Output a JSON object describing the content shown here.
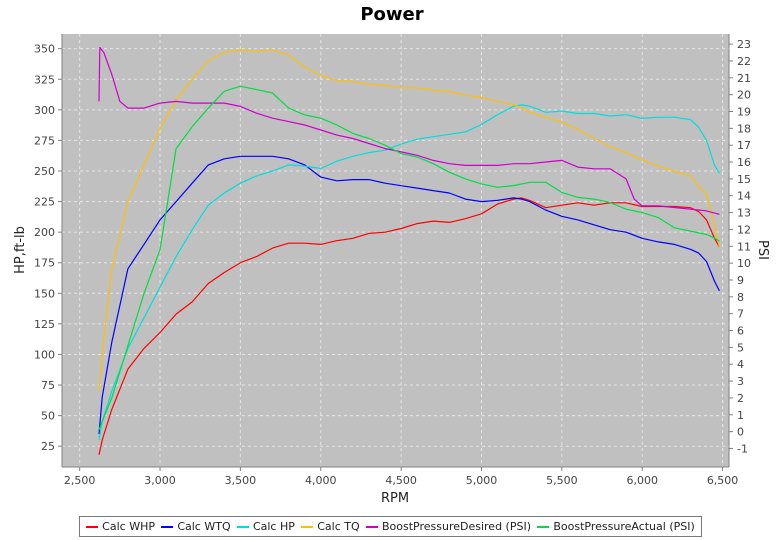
{
  "chart_data": {
    "type": "line",
    "title": "Power",
    "xlabel": "RPM",
    "ylabel": "HP,ft-lb",
    "y2label": "PSI",
    "xlim": [
      2390,
      6540
    ],
    "ylim": [
      8,
      362
    ],
    "y2lim": [
      -2.1,
      23.6
    ],
    "x_ticks": [
      2500,
      3000,
      3500,
      4000,
      4500,
      5000,
      5500,
      6000,
      6500
    ],
    "x_tick_labels": [
      "2,500",
      "3,000",
      "3,500",
      "4,000",
      "4,500",
      "5,000",
      "5,500",
      "6,000",
      "6,500"
    ],
    "y_ticks": [
      25,
      50,
      75,
      100,
      125,
      150,
      175,
      200,
      225,
      250,
      275,
      300,
      325,
      350
    ],
    "y2_ticks": [
      -1,
      0,
      1,
      2,
      3,
      4,
      5,
      6,
      7,
      8,
      9,
      10,
      11,
      12,
      13,
      14,
      15,
      16,
      17,
      18,
      19,
      20,
      21,
      22,
      23
    ],
    "grid": true,
    "legend_position": "bottom",
    "colors": {
      "plot_bg": "#c0c0c0",
      "grid": "#e6e6e6"
    },
    "series": [
      {
        "name": "Calc WHP",
        "color": "#ff0000",
        "axis": "left",
        "x": [
          2620,
          2640,
          2700,
          2800,
          2900,
          3000,
          3100,
          3200,
          3300,
          3400,
          3500,
          3600,
          3700,
          3800,
          3900,
          4000,
          4100,
          4200,
          4300,
          4400,
          4500,
          4600,
          4700,
          4800,
          4900,
          5000,
          5100,
          5200,
          5250,
          5300,
          5400,
          5500,
          5600,
          5700,
          5800,
          5900,
          6000,
          6100,
          6200,
          6300,
          6350,
          6400,
          6450,
          6480
        ],
        "values": [
          18,
          30,
          55,
          88,
          105,
          118,
          133,
          143,
          158,
          167,
          175,
          180,
          187,
          191,
          191,
          190,
          193,
          195,
          199,
          200,
          203,
          207,
          209,
          208,
          211,
          215,
          223,
          227,
          228,
          226,
          220,
          222,
          224,
          222,
          224,
          224,
          221,
          221,
          221,
          220,
          217,
          210,
          195,
          188
        ]
      },
      {
        "name": "Calc WTQ",
        "color": "#0000ff",
        "axis": "left",
        "x": [
          2620,
          2640,
          2700,
          2800,
          2900,
          3000,
          3100,
          3200,
          3300,
          3400,
          3500,
          3600,
          3700,
          3800,
          3900,
          4000,
          4100,
          4200,
          4300,
          4400,
          4500,
          4600,
          4700,
          4800,
          4900,
          5000,
          5100,
          5200,
          5250,
          5300,
          5400,
          5500,
          5600,
          5700,
          5800,
          5900,
          6000,
          6100,
          6200,
          6300,
          6350,
          6400,
          6450,
          6480
        ],
        "values": [
          35,
          65,
          110,
          170,
          190,
          210,
          225,
          240,
          255,
          260,
          262,
          262,
          262,
          260,
          255,
          245,
          242,
          243,
          243,
          240,
          238,
          236,
          234,
          232,
          227,
          225,
          226,
          228,
          227,
          225,
          218,
          213,
          210,
          206,
          202,
          200,
          195,
          192,
          190,
          186,
          183,
          176,
          160,
          152
        ]
      },
      {
        "name": "Calc HP",
        "color": "#00dddd",
        "axis": "left",
        "x": [
          2620,
          2640,
          2700,
          2800,
          2900,
          3000,
          3100,
          3200,
          3300,
          3400,
          3500,
          3600,
          3700,
          3800,
          3900,
          4000,
          4100,
          4200,
          4300,
          4400,
          4500,
          4600,
          4700,
          4800,
          4900,
          5000,
          5100,
          5200,
          5250,
          5300,
          5400,
          5500,
          5600,
          5700,
          5800,
          5900,
          6000,
          6100,
          6200,
          6300,
          6350,
          6400,
          6450,
          6480
        ],
        "values": [
          30,
          45,
          70,
          105,
          130,
          155,
          180,
          202,
          222,
          232,
          240,
          246,
          250,
          255,
          254,
          252,
          258,
          262,
          265,
          267,
          272,
          276,
          278,
          280,
          282,
          288,
          296,
          303,
          304,
          303,
          298,
          299,
          297,
          297,
          295,
          296,
          293,
          294,
          294,
          292,
          286,
          275,
          255,
          248
        ]
      },
      {
        "name": "Calc TQ",
        "color": "#ffc000",
        "axis": "left",
        "x": [
          2620,
          2640,
          2700,
          2800,
          2900,
          3000,
          3100,
          3200,
          3300,
          3400,
          3500,
          3600,
          3700,
          3800,
          3900,
          4000,
          4100,
          4200,
          4300,
          4400,
          4500,
          4600,
          4700,
          4800,
          4900,
          5000,
          5100,
          5200,
          5250,
          5300,
          5400,
          5500,
          5600,
          5700,
          5800,
          5900,
          6000,
          6100,
          6200,
          6300,
          6350,
          6400,
          6450,
          6480
        ],
        "values": [
          70,
          100,
          170,
          225,
          255,
          285,
          308,
          325,
          340,
          347,
          349,
          348,
          349,
          345,
          335,
          328,
          324,
          323,
          321,
          320,
          318,
          318,
          316,
          315,
          312,
          310,
          307,
          304,
          302,
          298,
          294,
          290,
          284,
          277,
          270,
          265,
          259,
          254,
          250,
          246,
          238,
          231,
          205,
          188
        ]
      },
      {
        "name": "BoostPressureDesired (PSI)",
        "color": "#cc00cc",
        "axis": "right",
        "x": [
          2620,
          2625,
          2650,
          2700,
          2750,
          2800,
          2900,
          3000,
          3100,
          3200,
          3300,
          3400,
          3500,
          3600,
          3700,
          3800,
          3900,
          4000,
          4100,
          4200,
          4300,
          4400,
          4500,
          4600,
          4700,
          4800,
          4900,
          5000,
          5100,
          5200,
          5300,
          5400,
          5500,
          5600,
          5700,
          5800,
          5900,
          5950,
          6000,
          6100,
          6200,
          6300,
          6400,
          6480
        ],
        "values": [
          19.6,
          22.8,
          22.5,
          21.2,
          19.6,
          19.2,
          19.2,
          19.5,
          19.6,
          19.5,
          19.5,
          19.5,
          19.3,
          18.9,
          18.6,
          18.4,
          18.2,
          17.9,
          17.6,
          17.4,
          17.1,
          16.8,
          16.6,
          16.4,
          16.1,
          15.9,
          15.8,
          15.8,
          15.8,
          15.9,
          15.9,
          16.0,
          16.1,
          15.7,
          15.6,
          15.6,
          15.0,
          13.8,
          13.4,
          13.4,
          13.3,
          13.2,
          13.1,
          12.9
        ]
      },
      {
        "name": "BoostPressureActual (PSI)",
        "color": "#00dd44",
        "axis": "right",
        "x": [
          2620,
          2640,
          2700,
          2800,
          2900,
          3000,
          3100,
          3200,
          3300,
          3400,
          3500,
          3600,
          3700,
          3800,
          3900,
          4000,
          4100,
          4200,
          4300,
          4400,
          4500,
          4600,
          4700,
          4800,
          4900,
          5000,
          5100,
          5200,
          5300,
          5400,
          5500,
          5600,
          5700,
          5800,
          5900,
          6000,
          6100,
          6200,
          6300,
          6400,
          6450,
          6480
        ],
        "values": [
          0.1,
          0.6,
          2.0,
          5.1,
          8.2,
          10.8,
          16.8,
          18.1,
          19.2,
          20.2,
          20.5,
          20.3,
          20.1,
          19.2,
          18.8,
          18.6,
          18.2,
          17.7,
          17.4,
          17.0,
          16.5,
          16.3,
          15.9,
          15.4,
          15.0,
          14.7,
          14.5,
          14.6,
          14.8,
          14.8,
          14.2,
          13.9,
          13.8,
          13.6,
          13.2,
          13.0,
          12.7,
          12.1,
          11.9,
          11.7,
          11.5,
          11.3
        ]
      }
    ]
  }
}
